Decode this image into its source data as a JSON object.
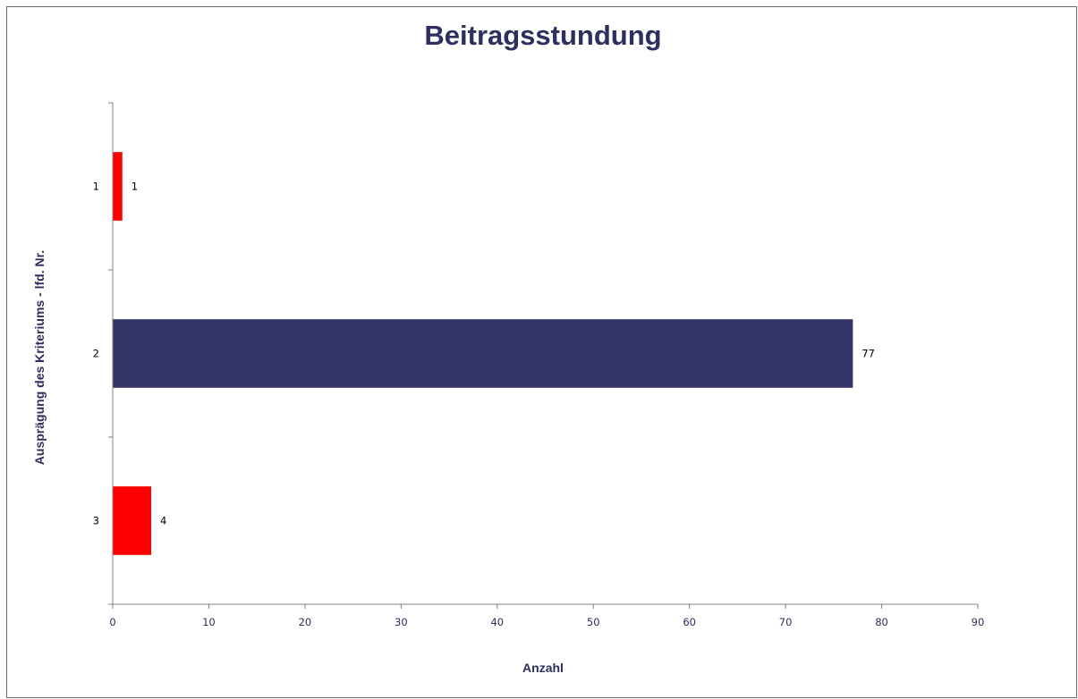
{
  "chart_data": {
    "type": "bar",
    "orientation": "horizontal",
    "title": "Beitragsstundung",
    "xlabel": "Anzahl",
    "ylabel": "Ausprägung des Kriteriums - lfd. Nr.",
    "categories": [
      "1",
      "2",
      "3"
    ],
    "values": [
      1,
      77,
      4
    ],
    "data_labels": [
      "1",
      "77",
      "4"
    ],
    "bar_colors": [
      "#ff0000",
      "#333366",
      "#ff0000"
    ],
    "xlim": [
      0,
      90
    ],
    "xticks": [
      "0",
      "10",
      "20",
      "30",
      "40",
      "50",
      "60",
      "70",
      "80",
      "90"
    ],
    "grid": false,
    "legend": "none"
  },
  "colors": {
    "title": "#2e2e5f",
    "axis": "#808080",
    "highlight_bar": "#333366",
    "default_bar": "#ff0000"
  }
}
